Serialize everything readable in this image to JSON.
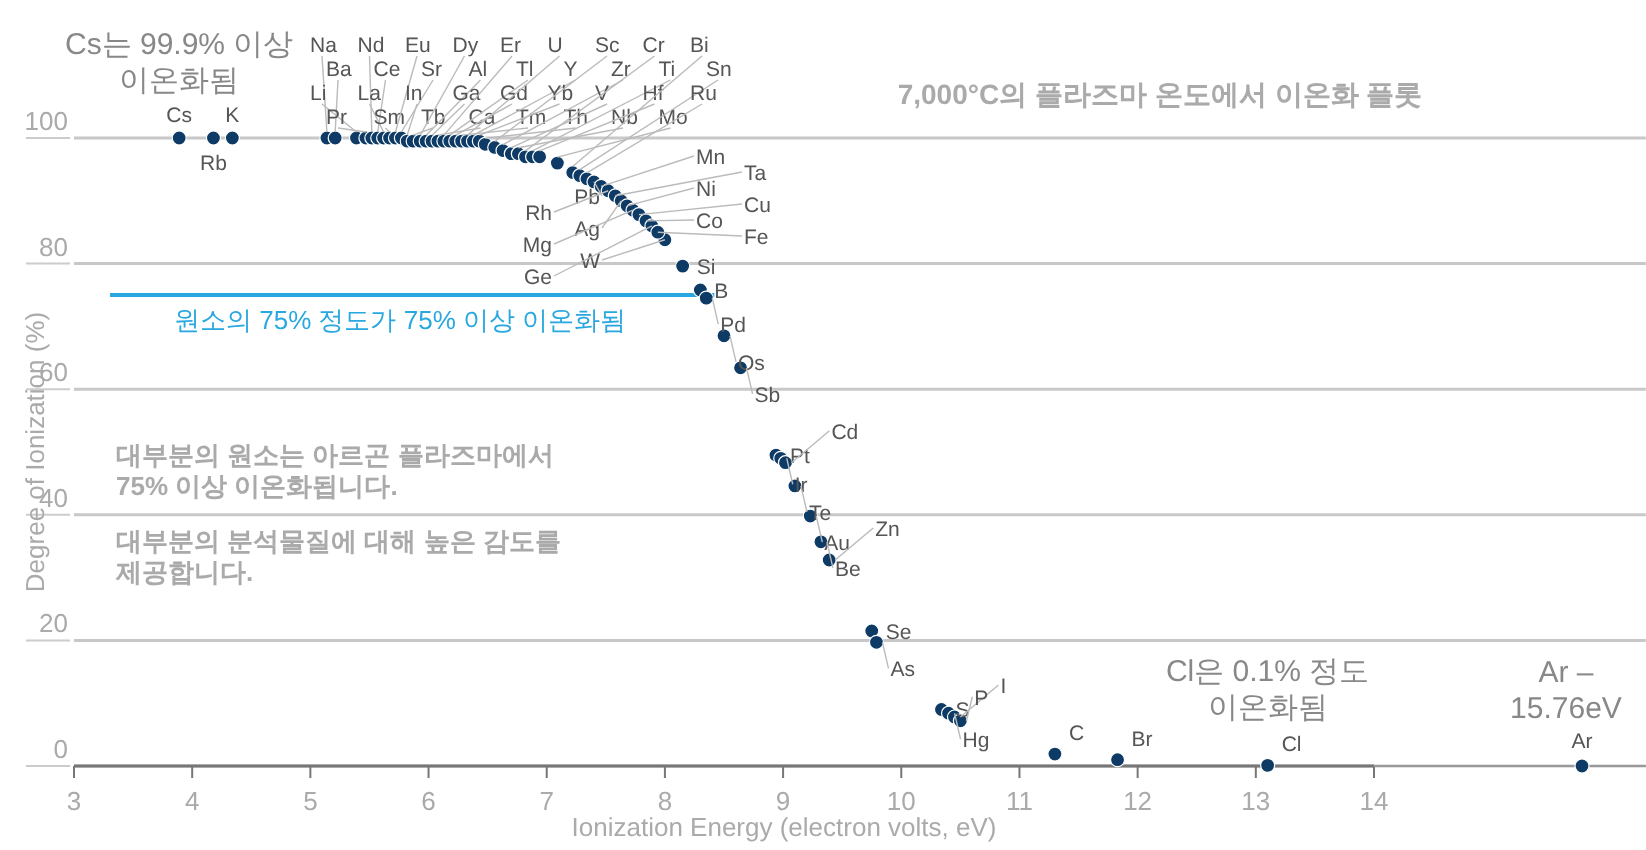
{
  "chart_data": {
    "type": "scatter",
    "title": "7,000°C의 플라즈마 온도에서 이온화 플롯",
    "xlabel": "Ionization Energy (electron volts, eV)",
    "ylabel": "Degree of Ionization (%)",
    "xlim": [
      3,
      16.3
    ],
    "xticks": [
      3,
      4,
      5,
      6,
      7,
      8,
      9,
      10,
      11,
      12,
      13,
      14
    ],
    "ylim": [
      0,
      100
    ],
    "yticks": [
      0,
      20,
      40,
      60,
      80,
      100
    ],
    "grid": "y",
    "marker": "circle",
    "series": [
      {
        "color": "#0d3b66",
        "x": [
          3.89,
          4.18,
          4.34,
          5.14,
          5.21,
          5.39,
          5.47,
          5.52,
          5.57,
          5.62,
          5.67,
          5.72,
          5.77,
          5.82,
          5.87,
          5.93,
          5.98,
          6.03,
          6.08,
          6.13,
          6.18,
          6.23,
          6.28,
          6.33,
          6.38,
          6.43,
          6.48,
          6.56,
          6.63,
          6.7,
          6.76,
          6.82,
          6.88,
          6.94,
          7.09,
          7.22,
          7.28,
          7.34,
          7.4,
          7.46,
          7.52,
          7.58,
          7.63,
          7.68,
          7.73,
          7.78,
          8.0,
          7.84,
          7.89,
          7.94,
          8.15,
          8.3,
          8.35,
          8.5,
          8.64,
          8.94,
          8.98,
          9.02,
          9.1,
          9.23,
          9.32,
          9.39,
          9.75,
          9.79,
          10.34,
          10.4,
          10.45,
          10.5,
          11.3,
          11.83,
          13.1,
          15.76
        ],
        "values": [
          100,
          100,
          100,
          100,
          100,
          100,
          100,
          100,
          100,
          100,
          100,
          100,
          100,
          99.5,
          99.5,
          99.5,
          99.5,
          99.5,
          99.5,
          99.5,
          99.5,
          99.5,
          99.5,
          99.5,
          99.5,
          99.5,
          99,
          98.5,
          98,
          97.5,
          97.5,
          97,
          97,
          97,
          96,
          94.5,
          94,
          93.5,
          93,
          92.3,
          91.6,
          90.8,
          90,
          89.2,
          88.5,
          87.8,
          83.8,
          86.8,
          86,
          85,
          79.6,
          75.8,
          74.5,
          68.5,
          63.4,
          49.5,
          49,
          48.3,
          44.6,
          39.8,
          35.7,
          32.8,
          21.5,
          19.7,
          9,
          8.4,
          7.8,
          7.2,
          1.9,
          1,
          0.1,
          0
        ]
      }
    ],
    "ref_lines": [
      {
        "axis": "y",
        "value": 75,
        "label": "원소의 75% 정도가 75% 이상 이온화됨",
        "color": "#29a8e0"
      }
    ],
    "annotations": [
      {
        "text": "Cs는 99.9% 이상\n이온화됨",
        "x": 3.89,
        "y": 100
      },
      "대부분의 원소는 아르곤 플라즈마에서\n75% 이상 이온화됩니다.",
      "대부분의 분석물질에 대해 높은 감도를\n제공합니다.",
      {
        "text": "Cl은 0.1% 정도\n이온화됨",
        "x": 13.1,
        "y": 0.1
      },
      {
        "text": "Ar –\n15.76eV",
        "x": 15.76,
        "y": 0
      },
      {
        "text": "Cs",
        "x": 3.89,
        "y": 100
      },
      {
        "text": "Rb",
        "x": 4.18,
        "y": 100
      },
      {
        "text": "K",
        "x": 4.34,
        "y": 100
      },
      {
        "text": "Na",
        "x": 5.14,
        "y": 100
      },
      {
        "text": "Ba",
        "x": 5.21,
        "y": 100
      },
      {
        "text": "Li",
        "x": 5.39,
        "y": 100
      },
      {
        "text": "Pr",
        "x": 5.47,
        "y": 100
      },
      {
        "text": "Nd",
        "x": 5.52,
        "y": 100
      },
      {
        "text": "Ce",
        "x": 5.57,
        "y": 100
      },
      {
        "text": "La",
        "x": 5.62,
        "y": 100
      },
      {
        "text": "Sm",
        "x": 5.67,
        "y": 100
      },
      {
        "text": "Eu",
        "x": 5.72,
        "y": 100
      },
      {
        "text": "Sr",
        "x": 5.77,
        "y": 100
      },
      {
        "text": "In",
        "x": 5.82,
        "y": 99.5
      },
      {
        "text": "Tb",
        "x": 5.87,
        "y": 99.5
      },
      {
        "text": "Dy",
        "x": 5.93,
        "y": 99.5
      },
      {
        "text": "Al",
        "x": 5.98,
        "y": 99.5
      },
      {
        "text": "Ga",
        "x": 6.03,
        "y": 99.5
      },
      {
        "text": "Ca",
        "x": 6.08,
        "y": 99.5
      },
      {
        "text": "Er",
        "x": 6.13,
        "y": 99.5
      },
      {
        "text": "Tl",
        "x": 6.18,
        "y": 99.5
      },
      {
        "text": "Gd",
        "x": 6.23,
        "y": 99.5
      },
      {
        "text": "Tm",
        "x": 6.28,
        "y": 99.5
      },
      {
        "text": "U",
        "x": 6.33,
        "y": 99.5
      },
      {
        "text": "Y",
        "x": 6.38,
        "y": 99.5
      },
      {
        "text": "Yb",
        "x": 6.43,
        "y": 99.5
      },
      {
        "text": "Th",
        "x": 6.48,
        "y": 99
      },
      {
        "text": "Sc",
        "x": 6.56,
        "y": 98.5
      },
      {
        "text": "Zr",
        "x": 6.63,
        "y": 98
      },
      {
        "text": "V",
        "x": 6.7,
        "y": 97.5
      },
      {
        "text": "Nb",
        "x": 6.76,
        "y": 97.5
      },
      {
        "text": "Cr",
        "x": 6.82,
        "y": 97
      },
      {
        "text": "Ti",
        "x": 6.88,
        "y": 97
      },
      {
        "text": "Hf",
        "x": 6.94,
        "y": 97
      },
      {
        "text": "Mo",
        "x": 7.09,
        "y": 96
      },
      {
        "text": "Bi",
        "x": 7.22,
        "y": 94.5
      },
      {
        "text": "Sn",
        "x": 7.28,
        "y": 94
      },
      {
        "text": "Ru",
        "x": 7.34,
        "y": 93.5
      },
      {
        "text": "Pb",
        "x": 7.4,
        "y": 93
      },
      {
        "text": "Mn",
        "x": 7.46,
        "y": 92.3
      },
      {
        "text": "Rh",
        "x": 7.52,
        "y": 91.6
      },
      {
        "text": "Ta",
        "x": 7.58,
        "y": 90.8
      },
      {
        "text": "Ag",
        "x": 7.63,
        "y": 90
      },
      {
        "text": "Ni",
        "x": 7.68,
        "y": 89.2
      },
      {
        "text": "Mg",
        "x": 7.73,
        "y": 88.5
      },
      {
        "text": "Cu",
        "x": 7.78,
        "y": 87.8
      },
      {
        "text": "W",
        "x": 8.0,
        "y": 83.8
      },
      {
        "text": "Co",
        "x": 7.84,
        "y": 86.8
      },
      {
        "text": "Ge",
        "x": 7.89,
        "y": 86
      },
      {
        "text": "Fe",
        "x": 7.94,
        "y": 85
      },
      {
        "text": "Si",
        "x": 8.15,
        "y": 79.6
      },
      {
        "text": "B",
        "x": 8.3,
        "y": 75.8
      },
      {
        "text": "Pd",
        "x": 8.35,
        "y": 74.5
      },
      {
        "text": "Os",
        "x": 8.5,
        "y": 68.5
      },
      {
        "text": "Sb",
        "x": 8.64,
        "y": 63.4
      },
      {
        "text": "Pt",
        "x": 8.94,
        "y": 49.5
      },
      {
        "text": "Ir",
        "x": 8.98,
        "y": 49
      },
      {
        "text": "Cd",
        "x": 9.02,
        "y": 48.3
      },
      {
        "text": "Te",
        "x": 9.1,
        "y": 44.6
      },
      {
        "text": "Au",
        "x": 9.23,
        "y": 39.8
      },
      {
        "text": "Be",
        "x": 9.32,
        "y": 35.7
      },
      {
        "text": "Zn",
        "x": 9.39,
        "y": 32.8
      },
      {
        "text": "Se",
        "x": 9.75,
        "y": 21.5
      },
      {
        "text": "As",
        "x": 9.79,
        "y": 19.7
      },
      {
        "text": "S",
        "x": 10.34,
        "y": 9
      },
      {
        "text": "Hg",
        "x": 10.4,
        "y": 8.4
      },
      {
        "text": "I",
        "x": 10.45,
        "y": 7.8
      },
      {
        "text": "P",
        "x": 10.5,
        "y": 7.2
      },
      {
        "text": "C",
        "x": 11.3,
        "y": 1.9
      },
      {
        "text": "Br",
        "x": 11.83,
        "y": 1
      },
      {
        "text": "Cl",
        "x": 13.1,
        "y": 0.1
      },
      {
        "text": "Ar",
        "x": 15.76,
        "y": 0
      }
    ]
  }
}
